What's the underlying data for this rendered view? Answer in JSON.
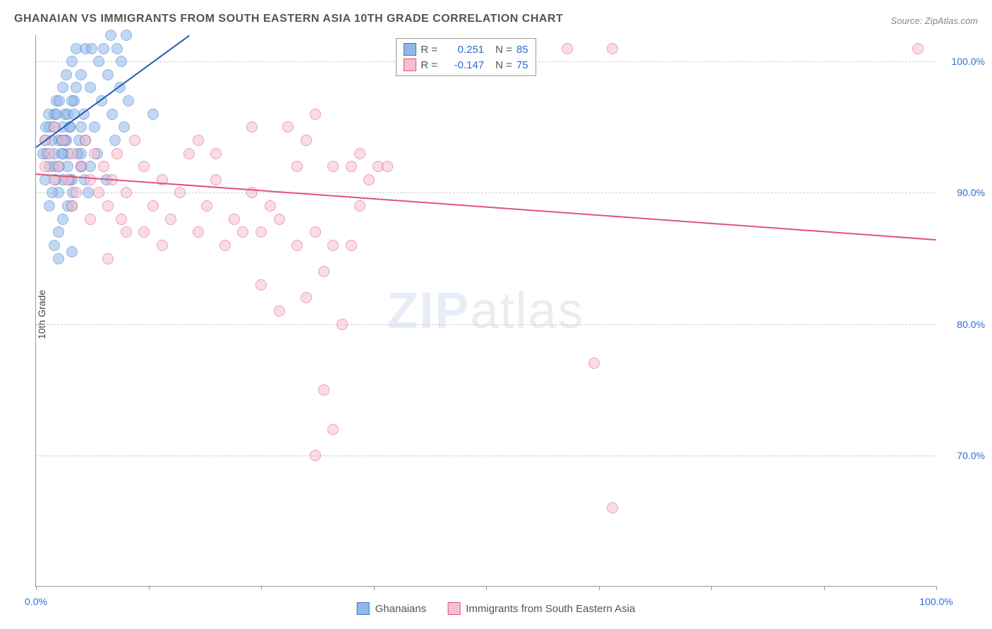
{
  "title": "GHANAIAN VS IMMIGRANTS FROM SOUTH EASTERN ASIA 10TH GRADE CORRELATION CHART",
  "source": "Source: ZipAtlas.com",
  "ylabel": "10th Grade",
  "watermark_zip": "ZIP",
  "watermark_atlas": "atlas",
  "chart": {
    "type": "scatter",
    "xlim": [
      0,
      100
    ],
    "ylim": [
      60,
      102
    ],
    "xticks": [
      0,
      12.5,
      25,
      37.5,
      50,
      62.5,
      75,
      87.5,
      100
    ],
    "xtick_labels": {
      "0": "0.0%",
      "100": "100.0%"
    },
    "yticks": [
      70,
      80,
      90,
      100
    ],
    "ytick_labels": [
      "70.0%",
      "80.0%",
      "90.0%",
      "100.0%"
    ],
    "background_color": "#ffffff",
    "grid_color": "#cccccc",
    "axis_color": "#999999",
    "marker_radius": 8,
    "marker_opacity": 0.55,
    "series": [
      {
        "name": "Ghanaians",
        "color_fill": "#8fb8e8",
        "color_stroke": "#3d78c7",
        "R": "0.251",
        "N": "85",
        "trend": {
          "x0": 0,
          "y0": 93.5,
          "x1": 17,
          "y1": 102,
          "color": "#1e5bb8"
        },
        "points": [
          [
            1,
            94
          ],
          [
            1.2,
            93
          ],
          [
            1.5,
            95
          ],
          [
            2,
            96
          ],
          [
            2,
            92
          ],
          [
            2.3,
            97
          ],
          [
            2.5,
            90
          ],
          [
            2.8,
            94
          ],
          [
            3,
            98
          ],
          [
            3,
            91
          ],
          [
            3.2,
            96
          ],
          [
            3.4,
            99
          ],
          [
            3.6,
            93
          ],
          [
            3.8,
            95
          ],
          [
            4,
            100
          ],
          [
            4,
            89
          ],
          [
            4.2,
            97
          ],
          [
            4.5,
            101
          ],
          [
            4.8,
            94
          ],
          [
            5,
            99
          ],
          [
            5,
            92
          ],
          [
            5.3,
            96
          ],
          [
            5.5,
            101
          ],
          [
            5.8,
            90
          ],
          [
            6,
            98
          ],
          [
            6.2,
            101
          ],
          [
            6.5,
            95
          ],
          [
            6.8,
            93
          ],
          [
            7,
            100
          ],
          [
            7.3,
            97
          ],
          [
            7.5,
            101
          ],
          [
            7.8,
            91
          ],
          [
            8,
            99
          ],
          [
            8.3,
            102
          ],
          [
            8.5,
            96
          ],
          [
            8.8,
            94
          ],
          [
            9,
            101
          ],
          [
            9.3,
            98
          ],
          [
            9.5,
            100
          ],
          [
            9.8,
            95
          ],
          [
            10,
            102
          ],
          [
            10.3,
            97
          ],
          [
            2,
            86
          ],
          [
            2.5,
            87
          ],
          [
            3,
            88
          ],
          [
            3.5,
            89
          ],
          [
            1.5,
            89
          ],
          [
            4,
            91
          ],
          [
            5,
            93
          ],
          [
            6,
            92
          ],
          [
            1,
            91
          ],
          [
            1.5,
            92
          ],
          [
            2,
            93
          ],
          [
            2.5,
            94
          ],
          [
            3,
            95
          ],
          [
            3.5,
            96
          ],
          [
            4,
            97
          ],
          [
            4.5,
            98
          ],
          [
            5,
            95
          ],
          [
            5.5,
            94
          ],
          [
            1.8,
            90
          ],
          [
            2.2,
            91
          ],
          [
            2.6,
            92
          ],
          [
            3.0,
            93
          ],
          [
            3.4,
            94
          ],
          [
            3.8,
            95
          ],
          [
            4.2,
            96
          ],
          [
            4.6,
            93
          ],
          [
            5.0,
            92
          ],
          [
            5.4,
            91
          ],
          [
            2.5,
            85
          ],
          [
            4,
            85.5
          ],
          [
            13,
            96
          ],
          [
            0.8,
            93
          ],
          [
            1.1,
            95
          ],
          [
            1.4,
            96
          ],
          [
            1.7,
            94
          ],
          [
            2.0,
            95
          ],
          [
            2.3,
            96
          ],
          [
            2.6,
            97
          ],
          [
            2.9,
            93
          ],
          [
            3.2,
            94
          ],
          [
            3.5,
            92
          ],
          [
            3.8,
            91
          ],
          [
            4.1,
            90
          ]
        ]
      },
      {
        "name": "Immigrants from South Eastern Asia",
        "color_fill": "#f7c0ce",
        "color_stroke": "#e0527a",
        "R": "-0.147",
        "N": "75",
        "trend": {
          "x0": 0,
          "y0": 91.5,
          "x1": 100,
          "y1": 86.5,
          "color": "#e0527a"
        },
        "points": [
          [
            1,
            94
          ],
          [
            1.5,
            93
          ],
          [
            2,
            95
          ],
          [
            2.5,
            92
          ],
          [
            3,
            94
          ],
          [
            3.5,
            91
          ],
          [
            4,
            93
          ],
          [
            4.5,
            90
          ],
          [
            5,
            92
          ],
          [
            5.5,
            94
          ],
          [
            6,
            91
          ],
          [
            6.5,
            93
          ],
          [
            7,
            90
          ],
          [
            7.5,
            92
          ],
          [
            8,
            89
          ],
          [
            8.5,
            91
          ],
          [
            9,
            93
          ],
          [
            9.5,
            88
          ],
          [
            10,
            90
          ],
          [
            11,
            94
          ],
          [
            12,
            92
          ],
          [
            12,
            87
          ],
          [
            13,
            89
          ],
          [
            14,
            91
          ],
          [
            15,
            88
          ],
          [
            16,
            90
          ],
          [
            17,
            93
          ],
          [
            18,
            87
          ],
          [
            18,
            94
          ],
          [
            19,
            89
          ],
          [
            20,
            91
          ],
          [
            20,
            93
          ],
          [
            21,
            86
          ],
          [
            22,
            88
          ],
          [
            23,
            87
          ],
          [
            24,
            90
          ],
          [
            24,
            95
          ],
          [
            25,
            87
          ],
          [
            26,
            89
          ],
          [
            27,
            88
          ],
          [
            27,
            81
          ],
          [
            28,
            95
          ],
          [
            29,
            86
          ],
          [
            29,
            92
          ],
          [
            30,
            94
          ],
          [
            30,
            82
          ],
          [
            31,
            87
          ],
          [
            31,
            96
          ],
          [
            32,
            84
          ],
          [
            33,
            92
          ],
          [
            33,
            86
          ],
          [
            34,
            80
          ],
          [
            35,
            92
          ],
          [
            35,
            86
          ],
          [
            36,
            93
          ],
          [
            36,
            89
          ],
          [
            37,
            91
          ],
          [
            38,
            92
          ],
          [
            39,
            92
          ],
          [
            59,
            101
          ],
          [
            64,
            101
          ],
          [
            62,
            77
          ],
          [
            64,
            66
          ],
          [
            98,
            101
          ],
          [
            25,
            83
          ],
          [
            31,
            70
          ],
          [
            33,
            72
          ],
          [
            32,
            75
          ],
          [
            8,
            85
          ],
          [
            10,
            87
          ],
          [
            14,
            86
          ],
          [
            6,
            88
          ],
          [
            4,
            89
          ],
          [
            2,
            91
          ],
          [
            1,
            92
          ]
        ]
      }
    ]
  },
  "legend_top": {
    "r_label": "R =",
    "n_label": "N ="
  },
  "legend_bottom": [
    {
      "swatch_fill": "#8fb8e8",
      "swatch_stroke": "#3d78c7",
      "label": "Ghanaians"
    },
    {
      "swatch_fill": "#f7c0ce",
      "swatch_stroke": "#e0527a",
      "label": "Immigrants from South Eastern Asia"
    }
  ]
}
